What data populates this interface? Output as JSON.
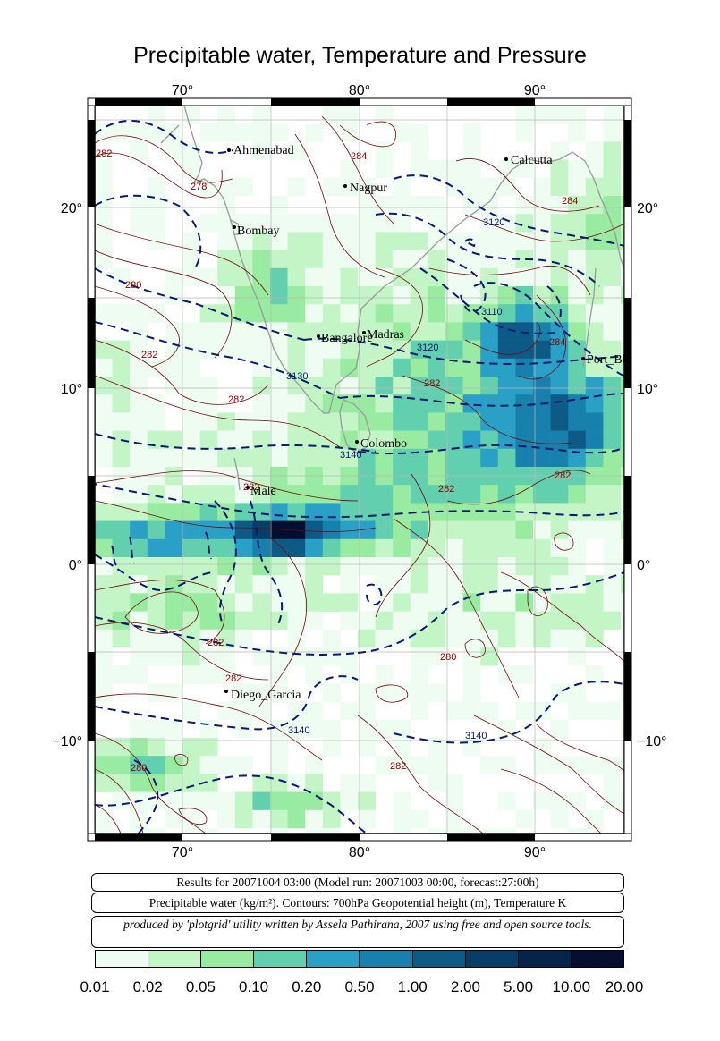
{
  "title": "Precipitable water, Temperature and Pressure",
  "axes": {
    "x_ticks": [
      "70°",
      "80°",
      "90°"
    ],
    "y_ticks": [
      "20°",
      "10°",
      "0°",
      "−10°"
    ]
  },
  "cities": [
    "Ahmenabad",
    "Nagpur",
    "Calcutta",
    "Bombay",
    "Bangalore",
    "Madras",
    "Port_Bl",
    "Colombo",
    "Male",
    "Diego_Garcia"
  ],
  "contour_labels": {
    "temperature": [
      "282",
      "278",
      "284",
      "280",
      "282",
      "282",
      "284",
      "282",
      "282",
      "284",
      "282",
      "282",
      "282",
      "282",
      "280",
      "280",
      "282"
    ],
    "geopotential": [
      "3120",
      "3110",
      "3120",
      "3130",
      "3140",
      "3140",
      "3140"
    ]
  },
  "info": {
    "line1": "Results for 20071004 03:00 (Model run: 20071003 00:00, forecast:27:00h)",
    "line2": "Precipitable water (kg/m²).  Contours: 700hPa Geopotential height (m), Temperature K",
    "line3": "produced by 'plotgrid' utility written by Assela Pathirana, 2007 using free and open source tools."
  },
  "colorbar": {
    "colors": [
      "#effcf2",
      "#c4f5c7",
      "#98eba0",
      "#62cfae",
      "#2ba0c6",
      "#1780ad",
      "#0e5a86",
      "#083d68",
      "#06244a",
      "#040e30"
    ],
    "labels": [
      "0.01",
      "0.02",
      "0.05",
      "0.10",
      "0.20",
      "0.50",
      "1.00",
      "2.00",
      "5.00",
      "10.00",
      "20.00"
    ]
  }
}
